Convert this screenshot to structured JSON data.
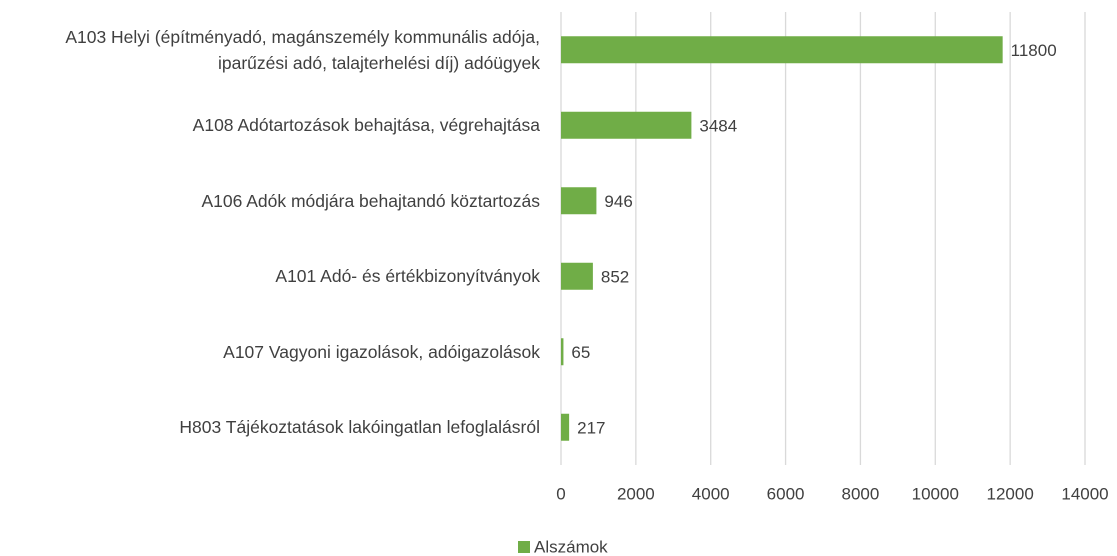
{
  "chart_data": {
    "type": "bar",
    "orientation": "horizontal",
    "categories": [
      "A103 Helyi (építményadó, magánszemély kommunális adója, iparűzési adó, talajterhelési díj) adóügyek",
      "A108 Adótartozások behajtása, végrehajtása",
      "A106 Adók módjára behajtandó köztartozás",
      "A101 Adó- és értékbizonyítványok",
      "A107 Vagyoni igazolások, adóigazolások",
      "H803 Tájékoztatások lakóingatlan lefoglalásról"
    ],
    "series": [
      {
        "name": "Alszámok",
        "color": "#70ad47",
        "values": [
          11800,
          3484,
          946,
          852,
          65,
          217
        ]
      }
    ],
    "xlim": [
      0,
      14000
    ],
    "xticks": [
      0,
      2000,
      4000,
      6000,
      8000,
      10000,
      12000,
      14000
    ],
    "grid": true,
    "legend": "bottom"
  }
}
